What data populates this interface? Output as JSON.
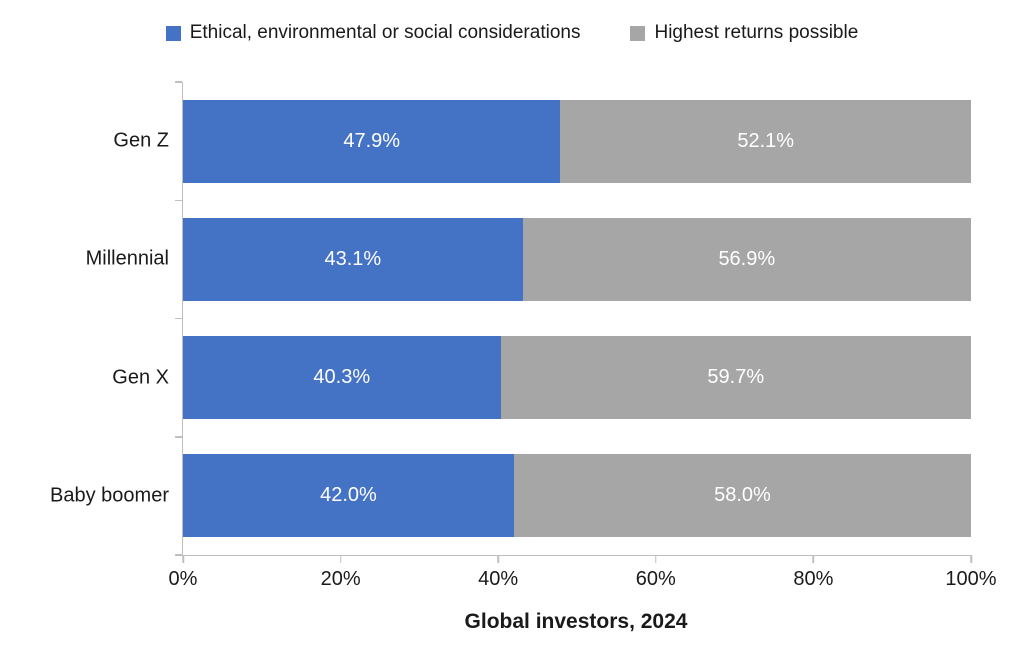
{
  "chart_data": {
    "type": "bar",
    "orientation": "horizontal",
    "stacked": true,
    "categories": [
      "Gen Z",
      "Millennial",
      "Gen X",
      "Baby boomer"
    ],
    "series": [
      {
        "name": "Ethical, environmental or social considerations",
        "color": "#4472C4",
        "values": [
          47.9,
          43.1,
          40.3,
          42.0
        ],
        "labels": [
          "47.9%",
          "43.1%",
          "40.3%",
          "42.0%"
        ]
      },
      {
        "name": "Highest returns possible",
        "color": "#A6A6A6",
        "values": [
          52.1,
          56.9,
          59.7,
          58.0
        ],
        "labels": [
          "52.1%",
          "56.9%",
          "59.7%",
          "58.0%"
        ]
      }
    ],
    "xlabel": "Global investors, 2024",
    "ylabel": "",
    "x_ticks": [
      "0%",
      "20%",
      "40%",
      "60%",
      "80%",
      "100%"
    ],
    "xlim": [
      0,
      100
    ],
    "grid": false,
    "legend_position": "top",
    "axis_line_color": "#BFBFBF",
    "value_label_color": "#FFFFFF"
  }
}
